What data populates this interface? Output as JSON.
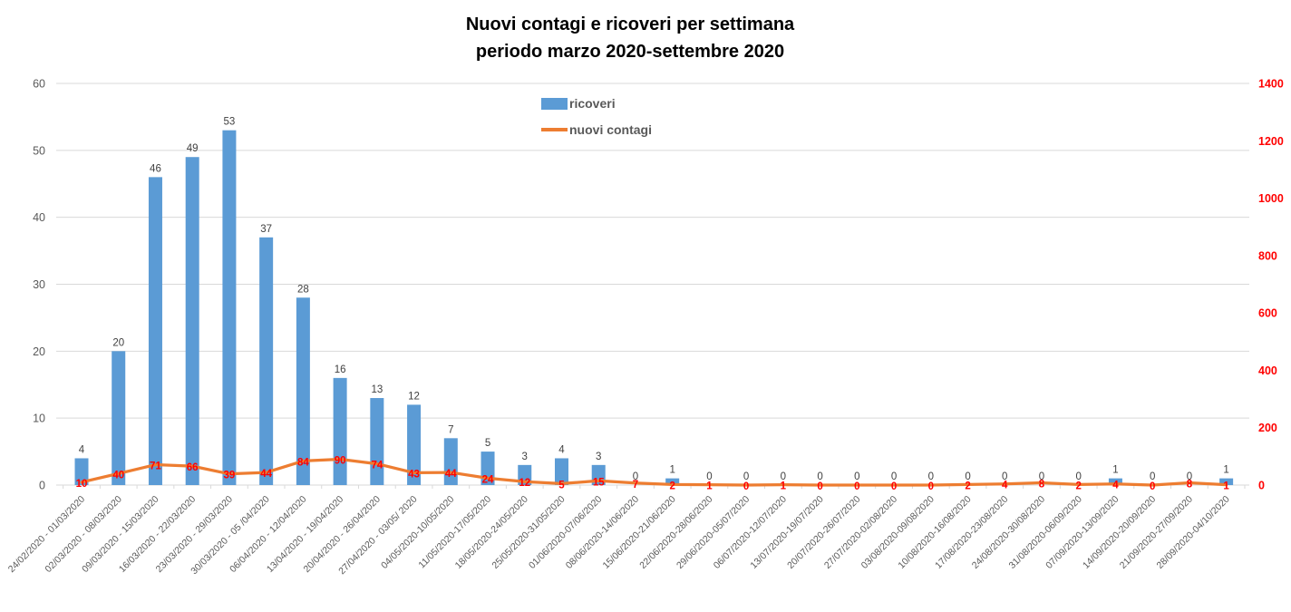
{
  "title": {
    "line1": "Nuovi contagi e ricoveri per settimana",
    "line2": "periodo marzo 2020-settembre 2020"
  },
  "chart_data": {
    "type": "combo",
    "title": "Nuovi contagi e ricoveri per settimana periodo marzo 2020-settembre 2020",
    "categories": [
      "24/02/2020 - 01/03/2020",
      "02/03/2020 - 08/03/2020",
      "09/03/2020 - 15/03/2020",
      "16/03/2020 - 22/03/2020",
      "23/03/2020 - 29/03/2020",
      "30/03/2020 - 05 /04/2020",
      "06/04/2020 - 12/04/2020",
      "13/04/2020 - 19/04/2020",
      "20/04/2020 - 26/04/2020",
      "27/04/2020 - 03/05/ 2020",
      "04/05/2020-10/05/2020",
      "11/05/2020-17/05/2020",
      "18/05/2020-24/05/2020",
      "25/05/2020-31/05/2020",
      "01/06/2020-07/06/2020",
      "08/06/2020-14/06/2020",
      "15/06/2020-21/06/2020",
      "22/06/2020-28/06/2020",
      "29/06/2020-05/07/2020",
      "06/07/2020-12/07/2020",
      "13/07/2020-19/07/2020",
      "20/07/2020-26/07/2020",
      "27/07/2020-02/08/2020",
      "03/08/2020-09/08/2020",
      "10/08/2020-16/08/2020",
      "17/08/2020-23/08/2020",
      "24/08/2020-30/08/2020",
      "31/08/2020-06/09/2020",
      "07/09/2020-13/09/2020",
      "14/09/2020-20/09/2020",
      "21/09/2020-27/09/2020",
      "28/09/2020-04/10/2020"
    ],
    "series": [
      {
        "name": "ricoveri",
        "type": "bar",
        "axis": "left",
        "color": "#5B9BD5",
        "values": [
          4,
          20,
          46,
          49,
          53,
          37,
          28,
          16,
          13,
          12,
          7,
          5,
          3,
          4,
          3,
          0,
          1,
          0,
          0,
          0,
          0,
          0,
          0,
          0,
          0,
          0,
          0,
          0,
          1,
          0,
          0,
          1
        ]
      },
      {
        "name": "nuovi contagi",
        "type": "line",
        "axis": "right",
        "color": "#ED7D31",
        "label_color": "#FF0000",
        "values": [
          10,
          40,
          71,
          66,
          39,
          44,
          84,
          90,
          74,
          43,
          44,
          24,
          12,
          5,
          15,
          7,
          2,
          1,
          0,
          1,
          0,
          0,
          0,
          0,
          2,
          4,
          8,
          2,
          4,
          0,
          8,
          1
        ]
      }
    ],
    "left_axis": {
      "min": 0,
      "max": 60,
      "step": 10,
      "ticks": [
        0,
        10,
        20,
        30,
        40,
        50,
        60
      ],
      "text_color": "#595959"
    },
    "right_axis": {
      "min": 0,
      "max": 1400,
      "step": 200,
      "ticks": [
        0,
        200,
        400,
        600,
        800,
        1000,
        1200,
        1400
      ],
      "text_color": "#FF0000"
    },
    "grid": true,
    "gridline_color": "#D9D9D9",
    "bar_label_color": "#404040",
    "axis_label_color": "#595959",
    "legend_position": "top-center"
  }
}
